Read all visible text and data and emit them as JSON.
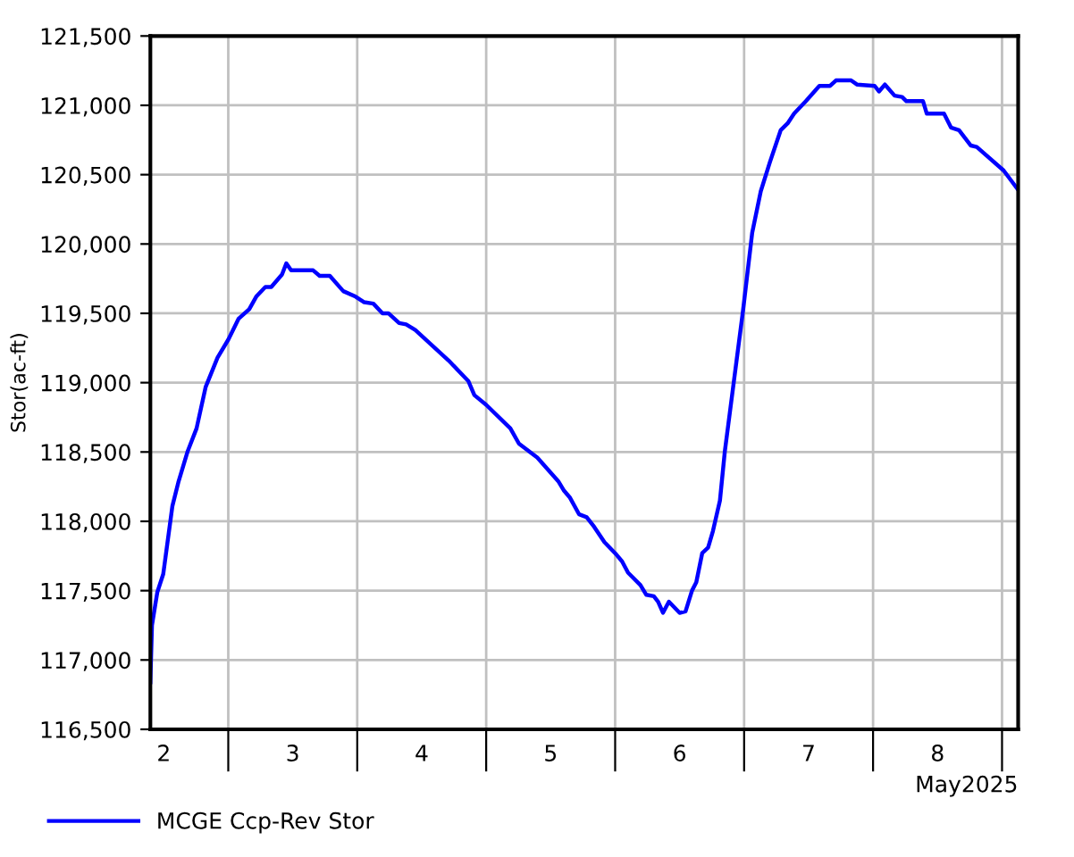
{
  "chart_data": {
    "type": "line",
    "ylabel": "Stor(ac-ft)",
    "xlabel": "May2025",
    "x": [
      "2025-05-02T09:30",
      "2025-05-02T09:48",
      "2025-05-02T10:48",
      "2025-05-02T11:54",
      "2025-05-02T13:36",
      "2025-05-02T14:42",
      "2025-05-02T16:24",
      "2025-05-02T18:06",
      "2025-05-02T19:48",
      "2025-05-02T22:00",
      "2025-05-03T00:00",
      "2025-05-03T01:54",
      "2025-05-03T03:54",
      "2025-05-03T05:12",
      "2025-05-03T06:54",
      "2025-05-03T08:00",
      "2025-05-03T10:00",
      "2025-05-03T10:48",
      "2025-05-03T11:42",
      "2025-05-03T15:48",
      "2025-05-03T17:00",
      "2025-05-03T18:54",
      "2025-05-03T21:24",
      "2025-05-03T23:42",
      "2025-05-04T01:18",
      "2025-05-04T03:00",
      "2025-05-04T04:42",
      "2025-05-04T05:48",
      "2025-05-04T07:48",
      "2025-05-04T09:06",
      "2025-05-04T10:48",
      "2025-05-04T17:00",
      "2025-05-04T20:42",
      "2025-05-04T21:48",
      "2025-05-05T00:00",
      "2025-05-05T04:30",
      "2025-05-05T06:06",
      "2025-05-05T09:30",
      "2025-05-05T13:24",
      "2025-05-05T14:30",
      "2025-05-05T15:36",
      "2025-05-05T17:18",
      "2025-05-05T18:42",
      "2025-05-05T20:06",
      "2025-05-05T22:00",
      "2025-05-06T00:00",
      "2025-05-06T01:18",
      "2025-05-06T02:24",
      "2025-05-06T04:42",
      "2025-05-06T05:48",
      "2025-05-06T07:12",
      "2025-05-06T08:00",
      "2025-05-06T08:54",
      "2025-05-06T10:00",
      "2025-05-06T12:00",
      "2025-05-06T13:06",
      "2025-05-06T14:18",
      "2025-05-06T15:06",
      "2025-05-06T16:12",
      "2025-05-06T17:18",
      "2025-05-06T18:12",
      "2025-05-06T19:30",
      "2025-05-06T20:24",
      "2025-05-06T22:06",
      "2025-05-06T23:48",
      "2025-05-07T01:30",
      "2025-05-07T03:06",
      "2025-05-07T04:48",
      "2025-05-07T06:48",
      "2025-05-07T08:06",
      "2025-05-07T09:18",
      "2025-05-07T11:30",
      "2025-05-07T14:00",
      "2025-05-07T16:00",
      "2025-05-07T17:06",
      "2025-05-07T19:54",
      "2025-05-07T21:00",
      "2025-05-08T00:18",
      "2025-05-08T01:06",
      "2025-05-08T02:12",
      "2025-05-08T04:00",
      "2025-05-08T05:24",
      "2025-05-08T06:12",
      "2025-05-08T09:18",
      "2025-05-08T10:00",
      "2025-05-08T13:12",
      "2025-05-08T14:30",
      "2025-05-08T16:00",
      "2025-05-08T18:12",
      "2025-05-08T19:18",
      "2025-05-09T00:18",
      "2025-05-09T03:00"
    ],
    "series": [
      {
        "name": "MCGE Ccp-Rev Stor",
        "color": "#0000ff",
        "values": [
          116840,
          117250,
          117490,
          117620,
          118110,
          118280,
          118500,
          118670,
          118970,
          119180,
          119310,
          119460,
          119530,
          119620,
          119690,
          119690,
          119780,
          119860,
          119810,
          119810,
          119770,
          119770,
          119660,
          119620,
          119580,
          119570,
          119500,
          119500,
          119430,
          119420,
          119380,
          119160,
          119010,
          118910,
          118840,
          118670,
          118560,
          118460,
          118290,
          118220,
          118170,
          118050,
          118030,
          117960,
          117850,
          117770,
          117710,
          117630,
          117540,
          117470,
          117460,
          117420,
          117340,
          117420,
          117340,
          117350,
          117500,
          117560,
          117770,
          117810,
          117930,
          118150,
          118500,
          119010,
          119520,
          120080,
          120380,
          120590,
          120820,
          120870,
          120940,
          121030,
          121140,
          121140,
          121180,
          121180,
          121150,
          121140,
          121100,
          121150,
          121070,
          121060,
          121030,
          121030,
          120940,
          120940,
          120840,
          120820,
          120710,
          120700,
          120530,
          120390
        ]
      }
    ],
    "xlim": [
      "2025-05-02T09:30",
      "2025-05-09T03:00"
    ],
    "xticks": [
      {
        "value": "2025-05-02T12:00",
        "label": "2"
      },
      {
        "value": "2025-05-03T00:00",
        "label": null
      },
      {
        "value": "2025-05-03T12:00",
        "label": "3"
      },
      {
        "value": "2025-05-04T00:00",
        "label": null
      },
      {
        "value": "2025-05-04T12:00",
        "label": "4"
      },
      {
        "value": "2025-05-05T00:00",
        "label": null
      },
      {
        "value": "2025-05-05T12:00",
        "label": "5"
      },
      {
        "value": "2025-05-06T00:00",
        "label": null
      },
      {
        "value": "2025-05-06T12:00",
        "label": "6"
      },
      {
        "value": "2025-05-07T00:00",
        "label": null
      },
      {
        "value": "2025-05-07T12:00",
        "label": "7"
      },
      {
        "value": "2025-05-08T00:00",
        "label": null
      },
      {
        "value": "2025-05-08T12:00",
        "label": "8"
      },
      {
        "value": "2025-05-09T00:00",
        "label": null
      }
    ],
    "ylim": [
      116500,
      121500
    ],
    "yticks": [
      {
        "value": 116500,
        "label": "116,500"
      },
      {
        "value": 117000,
        "label": "117,000"
      },
      {
        "value": 117500,
        "label": "117,500"
      },
      {
        "value": 118000,
        "label": "118,000"
      },
      {
        "value": 118500,
        "label": "118,500"
      },
      {
        "value": 119000,
        "label": "119,000"
      },
      {
        "value": 119500,
        "label": "119,500"
      },
      {
        "value": 120000,
        "label": "120,000"
      },
      {
        "value": 120500,
        "label": "120,500"
      },
      {
        "value": 121000,
        "label": "121,000"
      },
      {
        "value": 121500,
        "label": "121,500"
      }
    ],
    "grid": true,
    "legend": "bottom left",
    "line_style": "solid"
  }
}
